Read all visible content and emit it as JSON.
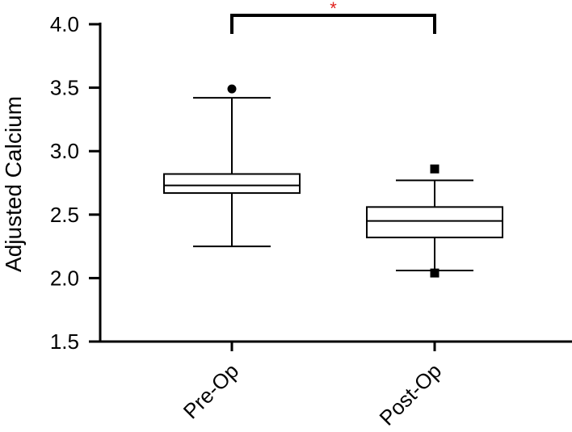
{
  "chart_data": {
    "type": "box",
    "title": "",
    "xlabel": "",
    "ylabel": "Adjusted Calcium",
    "ylim": [
      1.5,
      4.0
    ],
    "yticks": [
      "1.5",
      "2.0",
      "2.5",
      "3.0",
      "3.5",
      "4.0"
    ],
    "categories": [
      "Pre-Op",
      "Post-Op"
    ],
    "boxes": [
      {
        "category": "Pre-Op",
        "whisker_low": 2.25,
        "q1": 2.67,
        "median": 2.73,
        "q3": 2.82,
        "whisker_high": 3.42,
        "outliers": [
          3.49
        ],
        "marker": "circle"
      },
      {
        "category": "Post-Op",
        "whisker_low": 2.06,
        "q1": 2.32,
        "median": 2.45,
        "q3": 2.56,
        "whisker_high": 2.77,
        "outliers": [
          2.86,
          2.04
        ],
        "marker": "square"
      }
    ],
    "significance": {
      "between": [
        "Pre-Op",
        "Post-Op"
      ],
      "label": "*",
      "color": "#e0211d"
    },
    "grid": false,
    "legend": "none"
  }
}
